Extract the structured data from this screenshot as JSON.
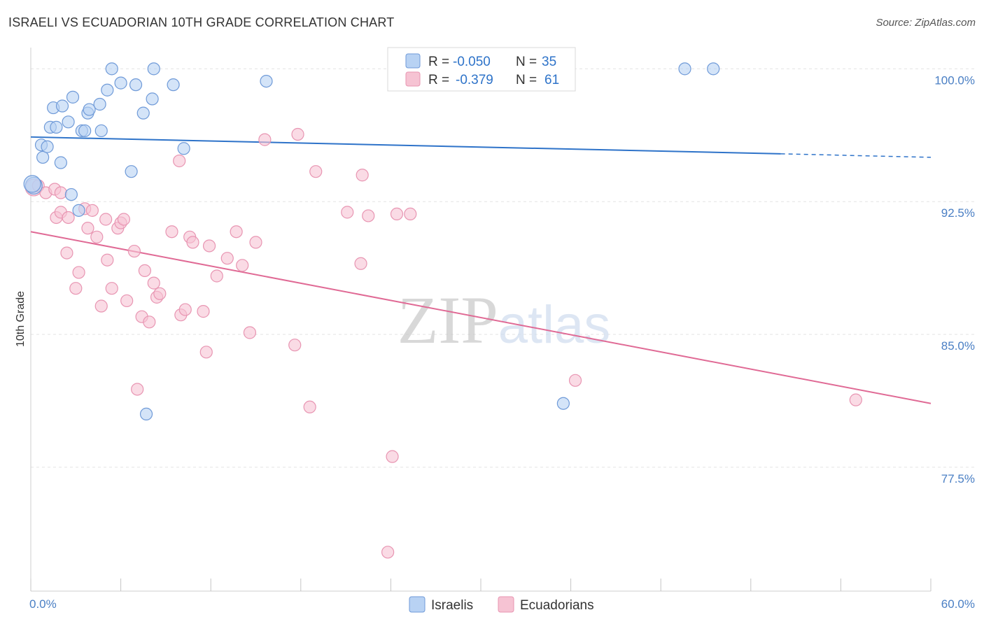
{
  "header": {
    "title": "ISRAELI VS ECUADORIAN 10TH GRADE CORRELATION CHART",
    "source": "Source: ZipAtlas.com"
  },
  "colors": {
    "blue_fill": "#b8d2f3",
    "blue_stroke": "#6f9ad8",
    "blue_line": "#2e73c9",
    "pink_fill": "#f6c3d3",
    "pink_stroke": "#e895b2",
    "pink_line": "#e06a95",
    "grid": "#e3e3e3",
    "axis_label": "#4a7fc4"
  },
  "chart_data": {
    "type": "scatter",
    "title": "ISRAELI VS ECUADORIAN 10TH GRADE CORRELATION CHART",
    "xlabel": "",
    "ylabel": "10th Grade",
    "xlim": [
      0,
      60
    ],
    "ylim": [
      70.5,
      101.2
    ],
    "x_tick_labels": [
      {
        "value": 0,
        "label": "0.0%"
      },
      {
        "value": 60,
        "label": "60.0%"
      }
    ],
    "y_tick_labels": [
      {
        "value": 100,
        "label": "100.0%"
      },
      {
        "value": 92.5,
        "label": "92.5%"
      },
      {
        "value": 85,
        "label": "85.0%"
      },
      {
        "value": 77.5,
        "label": "77.5%"
      }
    ],
    "x_minor_ticks": [
      0,
      6,
      12,
      18,
      24,
      30,
      36,
      42,
      48,
      54,
      60
    ],
    "grid": true,
    "watermark": "ZIPatlas",
    "legend": [
      {
        "name": "Israelis",
        "r_label": "R =",
        "r_value": "-0.050",
        "n_label": "N =",
        "n_value": "35"
      },
      {
        "name": "Ecuadorians",
        "r_label": "R =",
        "r_value": "-0.379",
        "n_label": "N =",
        "n_value": "61"
      }
    ],
    "series": [
      {
        "name": "Israelis",
        "points": [
          [
            0.2,
            93.4
          ],
          [
            0.7,
            95.7
          ],
          [
            0.8,
            95.0
          ],
          [
            1.1,
            95.6
          ],
          [
            1.3,
            96.7
          ],
          [
            1.5,
            97.8
          ],
          [
            1.7,
            96.7
          ],
          [
            2.1,
            97.9
          ],
          [
            2.0,
            94.7
          ],
          [
            2.5,
            97.0
          ],
          [
            2.7,
            92.9
          ],
          [
            2.8,
            98.4
          ],
          [
            3.2,
            92.0
          ],
          [
            3.4,
            96.5
          ],
          [
            3.6,
            96.5
          ],
          [
            3.8,
            97.5
          ],
          [
            3.9,
            97.7
          ],
          [
            4.6,
            98.0
          ],
          [
            4.7,
            96.5
          ],
          [
            5.1,
            98.8
          ],
          [
            5.4,
            100.0
          ],
          [
            6.0,
            99.2
          ],
          [
            6.7,
            94.2
          ],
          [
            7.0,
            99.1
          ],
          [
            7.5,
            97.5
          ],
          [
            7.7,
            80.5
          ],
          [
            8.1,
            98.3
          ],
          [
            8.2,
            100.0
          ],
          [
            9.5,
            99.1
          ],
          [
            10.2,
            95.5
          ],
          [
            15.7,
            99.3
          ],
          [
            35.5,
            81.1
          ],
          [
            43.6,
            100.0
          ],
          [
            45.5,
            100.0
          ],
          [
            0.1,
            93.5
          ]
        ],
        "trend": {
          "x0": 0,
          "y0": 96.15,
          "x1": 50,
          "y1": 95.2,
          "dash_x1": 60,
          "dash_y1": 95.0
        }
      },
      {
        "name": "Ecuadorians",
        "points": [
          [
            0.2,
            93.3
          ],
          [
            0.5,
            93.4
          ],
          [
            1.0,
            93.0
          ],
          [
            1.6,
            93.2
          ],
          [
            2.0,
            93.0
          ],
          [
            1.7,
            91.6
          ],
          [
            2.0,
            91.9
          ],
          [
            2.4,
            89.6
          ],
          [
            2.5,
            91.6
          ],
          [
            3.0,
            87.6
          ],
          [
            3.2,
            88.5
          ],
          [
            3.6,
            92.1
          ],
          [
            3.8,
            91.0
          ],
          [
            4.1,
            92.0
          ],
          [
            4.4,
            90.5
          ],
          [
            4.7,
            86.6
          ],
          [
            5.0,
            91.5
          ],
          [
            5.1,
            89.2
          ],
          [
            5.4,
            87.6
          ],
          [
            5.8,
            91.0
          ],
          [
            6.0,
            91.3
          ],
          [
            6.2,
            91.5
          ],
          [
            6.4,
            86.9
          ],
          [
            6.9,
            89.7
          ],
          [
            7.1,
            81.9
          ],
          [
            7.4,
            86.0
          ],
          [
            7.6,
            88.6
          ],
          [
            7.9,
            85.7
          ],
          [
            8.2,
            87.9
          ],
          [
            8.4,
            87.1
          ],
          [
            8.6,
            87.3
          ],
          [
            9.4,
            90.8
          ],
          [
            9.9,
            94.8
          ],
          [
            10.0,
            86.1
          ],
          [
            10.3,
            86.4
          ],
          [
            10.6,
            90.5
          ],
          [
            10.8,
            90.2
          ],
          [
            11.5,
            86.3
          ],
          [
            11.7,
            84.0
          ],
          [
            11.9,
            90.0
          ],
          [
            12.4,
            88.3
          ],
          [
            13.1,
            89.3
          ],
          [
            13.7,
            90.8
          ],
          [
            14.1,
            88.9
          ],
          [
            14.6,
            85.1
          ],
          [
            15.0,
            90.2
          ],
          [
            15.6,
            96.0
          ],
          [
            17.6,
            84.4
          ],
          [
            17.8,
            96.3
          ],
          [
            18.6,
            80.9
          ],
          [
            19.0,
            94.2
          ],
          [
            21.1,
            91.9
          ],
          [
            22.0,
            89.0
          ],
          [
            22.1,
            94.0
          ],
          [
            22.5,
            91.7
          ],
          [
            24.1,
            78.1
          ],
          [
            24.4,
            91.8
          ],
          [
            25.3,
            91.8
          ],
          [
            36.3,
            82.4
          ],
          [
            55.0,
            81.3
          ],
          [
            23.8,
            72.7
          ]
        ],
        "trend": {
          "x0": 0,
          "y0": 90.8,
          "x1": 60,
          "y1": 81.1
        }
      }
    ]
  }
}
